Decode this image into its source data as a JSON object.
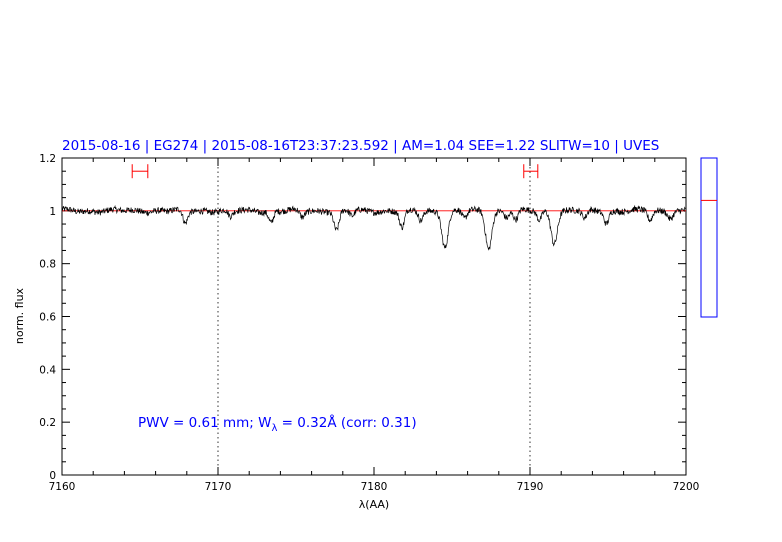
{
  "header": {
    "text": "2015-08-16  | EG274  | 2015-08-16T23:37:23.592  | AM=1.04  SEE=1.22  SLITW=10  | UVES"
  },
  "annotation": {
    "pwv_text": "PWV = 0.61 mm; W",
    "w_subscript": "λ",
    "w_value_text": " = 0.32Å  (corr: 0.31)"
  },
  "colors": {
    "header": "#0000ff",
    "continuum": "#ff0000",
    "spectrum": "#000000",
    "side_box": "#0000ff",
    "markers": "#ff0000"
  },
  "chart_data": {
    "type": "line",
    "xlabel": "λ(AA)",
    "ylabel": "norm. flux",
    "xlim": [
      7160,
      7200
    ],
    "ylim": [
      0,
      1.2
    ],
    "x_ticks": [
      "7160",
      "7170",
      "7180",
      "7190",
      "7200"
    ],
    "y_ticks": [
      "0",
      "0.2",
      "0.4",
      "0.6",
      "0.8",
      "1",
      "1.2"
    ],
    "continuum_level": 1.0,
    "vertical_dotted_lines": [
      7170,
      7190
    ],
    "interval_markers": [
      {
        "from": 7164.5,
        "to": 7165.5,
        "y": 1.15
      },
      {
        "from": 7189.6,
        "to": 7190.5,
        "y": 1.15
      }
    ],
    "absorption_lines": [
      {
        "center": 7167.9,
        "depth": 0.05,
        "width": 0.15
      },
      {
        "center": 7170.8,
        "depth": 0.025,
        "width": 0.15
      },
      {
        "center": 7173.4,
        "depth": 0.045,
        "width": 0.15
      },
      {
        "center": 7175.4,
        "depth": 0.025,
        "width": 0.15
      },
      {
        "center": 7177.6,
        "depth": 0.075,
        "width": 0.17
      },
      {
        "center": 7178.6,
        "depth": 0.02,
        "width": 0.15
      },
      {
        "center": 7181.8,
        "depth": 0.065,
        "width": 0.16
      },
      {
        "center": 7183.0,
        "depth": 0.035,
        "width": 0.15
      },
      {
        "center": 7184.55,
        "depth": 0.135,
        "width": 0.2
      },
      {
        "center": 7185.8,
        "depth": 0.03,
        "width": 0.15
      },
      {
        "center": 7187.35,
        "depth": 0.14,
        "width": 0.2
      },
      {
        "center": 7188.5,
        "depth": 0.025,
        "width": 0.15
      },
      {
        "center": 7189.1,
        "depth": 0.035,
        "width": 0.15
      },
      {
        "center": 7190.6,
        "depth": 0.035,
        "width": 0.15
      },
      {
        "center": 7191.55,
        "depth": 0.12,
        "width": 0.2
      },
      {
        "center": 7193.5,
        "depth": 0.03,
        "width": 0.15
      },
      {
        "center": 7194.9,
        "depth": 0.045,
        "width": 0.15
      },
      {
        "center": 7197.7,
        "depth": 0.035,
        "width": 0.15
      },
      {
        "center": 7199.0,
        "depth": 0.025,
        "width": 0.15
      }
    ],
    "noise_amplitude": 0.012,
    "side_panel": {
      "ylim": [
        0.6,
        1.2
      ],
      "marker_level": 1.04
    }
  }
}
